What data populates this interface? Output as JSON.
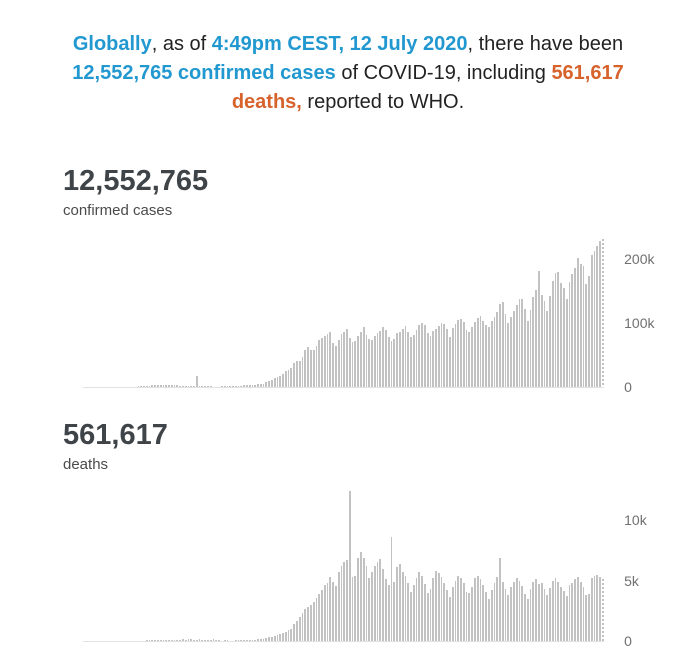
{
  "header": {
    "segments": [
      {
        "text": "Globally",
        "style": "blue-bold"
      },
      {
        "text": ", as of ",
        "style": "plain"
      },
      {
        "text": "4:49pm CEST, 12 July 2020",
        "style": "blue-bold"
      },
      {
        "text": ", there have been ",
        "style": "plain"
      },
      {
        "text": "12,552,765 confirmed cases",
        "style": "blue-bold"
      },
      {
        "text": " of COVID-19, including ",
        "style": "plain"
      },
      {
        "text": "561,617 deaths,",
        "style": "orange-bold"
      },
      {
        "text": " reported to WHO.",
        "style": "plain"
      }
    ],
    "colors": {
      "blue": "#2298d0",
      "orange": "#d7622c",
      "text": "#222222"
    }
  },
  "chart_data": [
    {
      "type": "bar",
      "title": "12,552,765",
      "subtitle": "confirmed cases",
      "xlabel": "",
      "ylabel": "",
      "legend": null,
      "grid": false,
      "ytick_labels": [
        "0",
        "100k",
        "200k"
      ],
      "ytick_values": [
        0,
        100000,
        200000
      ],
      "ylim": [
        0,
        246000
      ],
      "bar_color": "#c2c2c2",
      "last_bar_style": "dashed",
      "values": [
        40,
        0,
        60,
        0,
        0,
        80,
        50,
        100,
        150,
        220,
        300,
        450,
        500,
        650,
        700,
        800,
        1750,
        1450,
        1750,
        2000,
        2100,
        2600,
        2800,
        3200,
        3900,
        3700,
        3200,
        3400,
        2700,
        3000,
        2600,
        2100,
        2000,
        1900,
        2200,
        2100,
        1800,
        17400,
        1900,
        1750,
        1600,
        1000,
        900,
        800,
        700,
        650,
        900,
        1000,
        1300,
        1350,
        1700,
        1800,
        2200,
        2300,
        2500,
        2800,
        3700,
        3600,
        3900,
        4000,
        4600,
        5000,
        7500,
        9800,
        10900,
        13900,
        15100,
        16600,
        20100,
        24200,
        26100,
        29800,
        37200,
        39800,
        40200,
        47300,
        57000,
        62500,
        58000,
        57600,
        63200,
        72800,
        75600,
        79400,
        82000,
        85700,
        68800,
        63200,
        73600,
        82900,
        85000,
        89600,
        76900,
        70100,
        71800,
        79800,
        85100,
        93100,
        81100,
        75300,
        73900,
        78700,
        84200,
        86900,
        93300,
        88700,
        77200,
        72000,
        74900,
        83400,
        85800,
        91000,
        94700,
        86100,
        78400,
        81500,
        88900,
        95800,
        99500,
        96900,
        84100,
        80200,
        86700,
        90100,
        95100,
        100300,
        98000,
        90700,
        78300,
        92100,
        97400,
        104400,
        105300,
        101800,
        88600,
        86300,
        94200,
        101200,
        107800,
        110500,
        102400,
        97300,
        93500,
        102800,
        108600,
        116500,
        128700,
        131800,
        113600,
        99700,
        108900,
        118500,
        127200,
        136400,
        137300,
        120900,
        103200,
        119400,
        139800,
        150600,
        181200,
        142900,
        133300,
        119100,
        141700,
        165300,
        177200,
        179300,
        161400,
        154500,
        136500,
        163900,
        175700,
        185900,
        201600,
        192100,
        188200,
        159800,
        172800,
        204900,
        212300,
        219500,
        228100,
        230400
      ]
    },
    {
      "type": "bar",
      "title": "561,617",
      "subtitle": "deaths",
      "xlabel": "",
      "ylabel": "",
      "legend": null,
      "grid": false,
      "ytick_labels": [
        "0",
        "5k",
        "10k"
      ],
      "ytick_values": [
        0,
        5000,
        10000
      ],
      "ylim": [
        0,
        13100
      ],
      "bar_color": "#c2c2c2",
      "last_bar_style": "dashed",
      "values": [
        1,
        0,
        0,
        0,
        0,
        2,
        1,
        2,
        3,
        3,
        4,
        8,
        8,
        16,
        15,
        24,
        26,
        26,
        38,
        43,
        46,
        45,
        57,
        64,
        66,
        72,
        73,
        86,
        89,
        97,
        108,
        97,
        146,
        121,
        143,
        142,
        105,
        98,
        136,
        115,
        118,
        109,
        97,
        150,
        71,
        52,
        29,
        44,
        47,
        35,
        42,
        45,
        58,
        64,
        67,
        73,
        95,
        98,
        102,
        140,
        182,
        201,
        268,
        335,
        342,
        391,
        475,
        561,
        661,
        742,
        874,
        1002,
        1398,
        1689,
        1972,
        2344,
        2651,
        2824,
        3013,
        3215,
        3526,
        3903,
        4251,
        4644,
        4823,
        5312,
        4862,
        4527,
        5704,
        6213,
        6514,
        6718,
        12430,
        5322,
        5413,
        6855,
        7412,
        6921,
        6187,
        5203,
        5691,
        6244,
        6532,
        6764,
        5981,
        5124,
        4612,
        8612,
        4923,
        6103,
        6381,
        5763,
        5431,
        4823,
        4102,
        4624,
        5215,
        5712,
        5428,
        4721,
        3998,
        4321,
        5212,
        5801,
        5623,
        5314,
        4812,
        4213,
        3641,
        4512,
        4983,
        5412,
        5211,
        4782,
        4103,
        3981,
        4512,
        5203,
        5414,
        5112,
        4623,
        4101,
        3523,
        4213,
        4823,
        5312,
        6913,
        4912,
        4312,
        3821,
        4512,
        4923,
        5214,
        5012,
        4523,
        3912,
        3512,
        4321,
        4912,
        5123,
        4713,
        4823,
        4321,
        3812,
        4413,
        5012,
        5214,
        4912,
        4512,
        4123,
        3712,
        4623,
        4813,
        5112,
        5312,
        4923,
        4512,
        3812,
        3912,
        5212,
        5414,
        5512,
        5312,
        5123
      ]
    }
  ]
}
